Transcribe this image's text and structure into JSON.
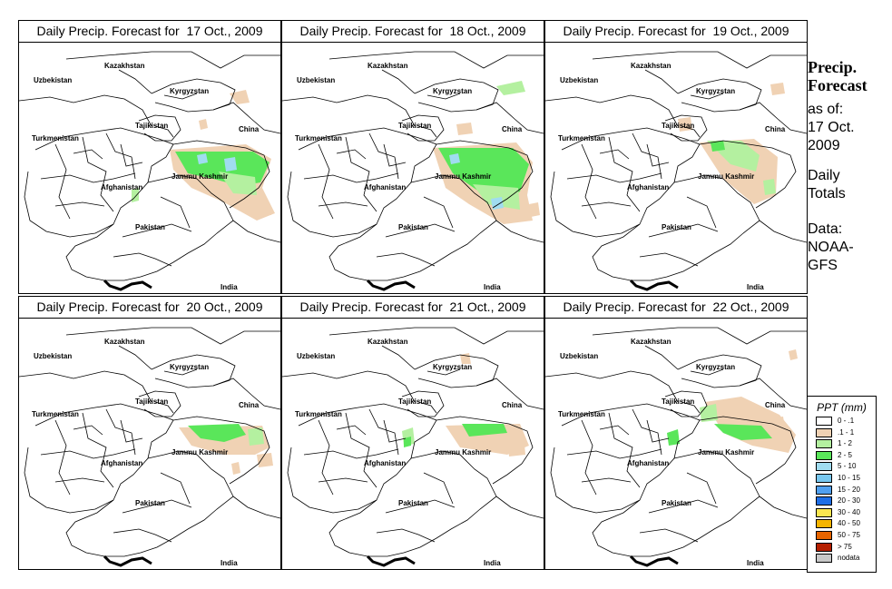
{
  "panels": [
    {
      "id": "p1",
      "title": "Daily Precip. Forecast for  17 Oct., 2009",
      "date": "17 Oct., 2009"
    },
    {
      "id": "p2",
      "title": "Daily Precip. Forecast for  18 Oct., 2009",
      "date": "18 Oct., 2009"
    },
    {
      "id": "p3",
      "title": "Daily Precip. Forecast for  19 Oct., 2009",
      "date": "19 Oct., 2009"
    },
    {
      "id": "p4",
      "title": "Daily Precip. Forecast for  20 Oct., 2009",
      "date": "20 Oct., 2009"
    },
    {
      "id": "p5",
      "title": "Daily Precip. Forecast for  21 Oct., 2009",
      "date": "21 Oct., 2009"
    },
    {
      "id": "p6",
      "title": "Daily Precip. Forecast for  22 Oct., 2009",
      "date": "22 Oct., 2009"
    }
  ],
  "map_labels": {
    "uzbekistan": "Uzbekistan",
    "kazakhstan": "Kazakhstan",
    "kyrgyzstan": "Kyrgyzstan",
    "tajikistan": "Tajikistan",
    "turkmenistan": "Turkmenistan",
    "china": "China",
    "afghanistan": "Afghanistan",
    "jammu_kashmir": "Jammu Kashmir",
    "pakistan": "Pakistan",
    "india": "India"
  },
  "sidebar": {
    "title_line1": "Precip.",
    "title_line2": "Forecast",
    "asof_line1": "as of:",
    "asof_line2": "17 Oct.",
    "asof_line3": "2009",
    "daily_line1": "Daily",
    "daily_line2": "Totals",
    "data_line1": "Data:",
    "data_line2": "NOAA-",
    "data_line3": "GFS"
  },
  "legend": {
    "title": "PPT (mm)",
    "items": [
      {
        "label": "0 - .1",
        "color": "#ffffff"
      },
      {
        "label": ".1 - 1",
        "color": "#f0d2b4"
      },
      {
        "label": "1 - 2",
        "color": "#b4f0a0"
      },
      {
        "label": "2 - 5",
        "color": "#5ae65a"
      },
      {
        "label": "5 - 10",
        "color": "#a0dcf0"
      },
      {
        "label": "10 - 15",
        "color": "#78c8f0"
      },
      {
        "label": "15 - 20",
        "color": "#50a0f0"
      },
      {
        "label": "20 - 30",
        "color": "#1e6ee6"
      },
      {
        "label": "30 - 40",
        "color": "#fae650"
      },
      {
        "label": "40 - 50",
        "color": "#f5b400"
      },
      {
        "label": "50 - 75",
        "color": "#e66400"
      },
      {
        "label": "> 75",
        "color": "#b41e00"
      },
      {
        "label": "nodata",
        "color": "#c8c8c8"
      }
    ]
  },
  "colors": {
    "low": "#f0d2b4",
    "mid": "#b4f0a0",
    "high": "#5ae65a",
    "peak": "#a0dcf0"
  }
}
